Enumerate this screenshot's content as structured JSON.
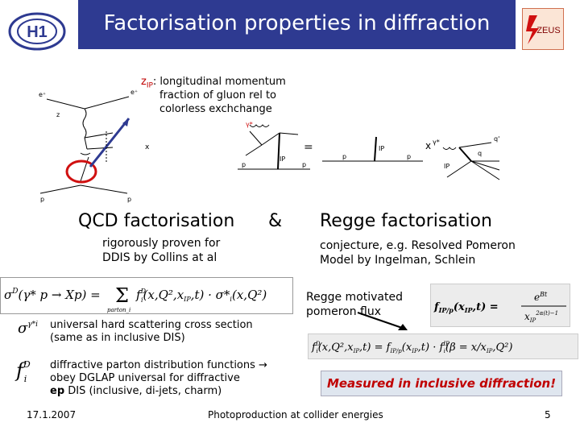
{
  "header": {
    "title": "Factorisation properties in diffraction",
    "logo_left_text": "H1",
    "logo_right_text": "ZEUS"
  },
  "diagram": {
    "zip_symbol": "z",
    "zip_sub": "IP",
    "zip_desc_1": ": longitudinal momentum",
    "zip_desc_2": "fraction of gluon rel to",
    "zip_desc_3": "colorless exchchange",
    "left_labels": {
      "e_in": "e⁺",
      "e_out": "e⁺",
      "x": "x",
      "p_in": "p",
      "p_out": "p",
      "z": "z"
    },
    "right_labels": {
      "gamma": "γ*",
      "ip": "IP",
      "p1": "p",
      "p2": "p",
      "p3": "p",
      "p4": "p",
      "eq": "=",
      "times": "x",
      "ip2": "IP",
      "ip3": "IP",
      "q": "q",
      "qprime": "q'",
      "gamma2": "γ*"
    }
  },
  "columns": {
    "qcd_heading": "QCD factorisation",
    "amp": "&",
    "regge_heading": "Regge factorisation",
    "qcd_desc_1": "rigorously proven for",
    "qcd_desc_2": "DDIS by Collins at al",
    "regge_desc_1": "conjecture, e.g. Resolved Pomeron",
    "regge_desc_2": "Model by Ingelman, Schlein"
  },
  "notes": {
    "sigma_desc_1": "universal hard scattering cross section",
    "sigma_desc_2": "(same as in inclusive DIS)",
    "fd_desc_1": "diffractive parton distribution functions →",
    "fd_desc_2": " obey DGLAP universal for diffractive",
    "fd_desc_3": "ep DIS (inclusive, di-jets, charm)",
    "regge_flux_1": "Regge motivated",
    "regge_flux_2": "pomeron flux",
    "measured": "Measured in inclusive diffraction!"
  },
  "footer": {
    "date": "17.1.2007",
    "center": "Photoproduction at collider energies",
    "page": "5"
  }
}
